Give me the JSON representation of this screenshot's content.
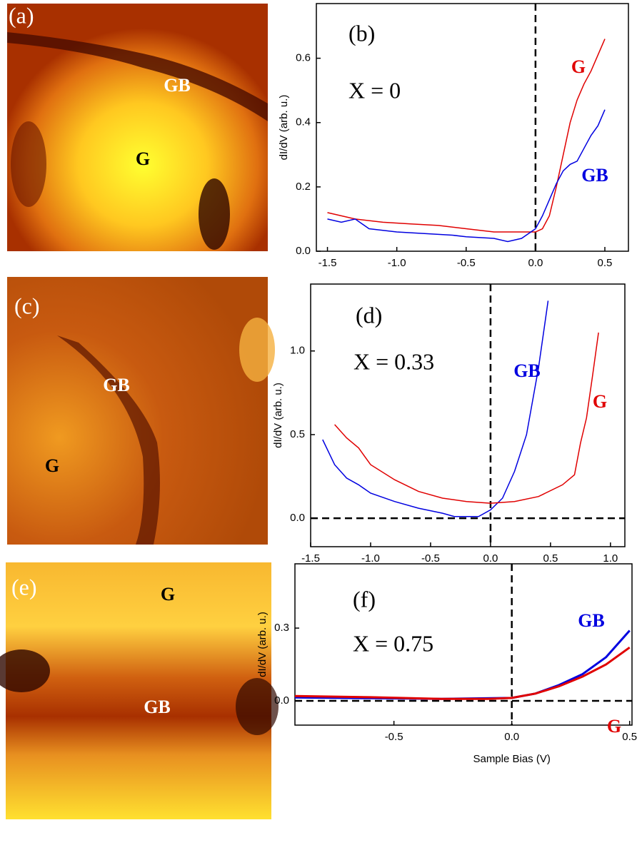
{
  "images": [
    {
      "panel": "(a)",
      "labels": [
        "GB",
        "G"
      ]
    },
    {
      "panel": "(c)",
      "labels": [
        "GB",
        "G"
      ]
    },
    {
      "panel": "(e)",
      "labels": [
        "G",
        "GB"
      ]
    }
  ],
  "chart_data": [
    {
      "type": "line",
      "panel": "(b)",
      "annotation": "X = 0",
      "ylabel": "dI/dV (arb. u.)",
      "xlim": [
        -1.58,
        0.67
      ],
      "ylim": [
        0,
        0.77
      ],
      "xticks": [
        -1.5,
        {
          "value": -1.0,
          "label": "-1.0"
        },
        -0.5,
        {
          "value": 0.0,
          "label": "0.0"
        },
        0.5
      ],
      "yticks": [
        {
          "value": 0.0,
          "label": "0.0"
        },
        0.2,
        0.4,
        0.6
      ],
      "dashed_zero_x": true,
      "dashed_zero_y": false,
      "series": [
        {
          "name": "G",
          "color": "#e00000",
          "x": [
            -1.5,
            -1.3,
            -1.1,
            -0.9,
            -0.7,
            -0.5,
            -0.3,
            -0.1,
            0.0,
            0.05,
            0.1,
            0.15,
            0.2,
            0.25,
            0.3,
            0.35,
            0.4,
            0.45,
            0.5
          ],
          "values": [
            0.12,
            0.1,
            0.09,
            0.085,
            0.08,
            0.07,
            0.06,
            0.06,
            0.06,
            0.07,
            0.11,
            0.2,
            0.3,
            0.4,
            0.47,
            0.52,
            0.56,
            0.61,
            0.66
          ]
        },
        {
          "name": "GB",
          "color": "#0000e0",
          "x": [
            -1.5,
            -1.4,
            -1.3,
            -1.2,
            -1.1,
            -1.0,
            -0.8,
            -0.6,
            -0.5,
            -0.3,
            -0.2,
            -0.1,
            0.0,
            0.05,
            0.1,
            0.15,
            0.2,
            0.25,
            0.3,
            0.35,
            0.4,
            0.45,
            0.5
          ],
          "values": [
            0.1,
            0.09,
            0.1,
            0.07,
            0.065,
            0.06,
            0.055,
            0.05,
            0.045,
            0.04,
            0.03,
            0.04,
            0.07,
            0.11,
            0.16,
            0.21,
            0.25,
            0.27,
            0.28,
            0.32,
            0.36,
            0.39,
            0.44
          ]
        }
      ]
    },
    {
      "type": "line",
      "panel": "(d)",
      "annotation": "X = 0.33",
      "ylabel": "dI/dV (arb. u.)",
      "xlim": [
        -1.5,
        1.12
      ],
      "ylim": [
        -0.17,
        1.4
      ],
      "xticks": [
        -1.5,
        {
          "value": -1.0,
          "label": "-1.0"
        },
        -0.5,
        {
          "value": 0.0,
          "label": "0.0"
        },
        0.5,
        {
          "value": 1.0,
          "label": "1.0"
        }
      ],
      "yticks": [
        {
          "value": 0.0,
          "label": "0.0"
        },
        0.5,
        {
          "value": 1.0,
          "label": "1.0"
        }
      ],
      "dashed_zero_x": true,
      "dashed_zero_y": true,
      "series": [
        {
          "name": "GB",
          "color": "#0000e0",
          "x": [
            -1.4,
            -1.3,
            -1.2,
            -1.1,
            -1.0,
            -0.8,
            -0.6,
            -0.4,
            -0.3,
            -0.1,
            0.0,
            0.1,
            0.2,
            0.3,
            0.35,
            0.4,
            0.45,
            0.48
          ],
          "values": [
            0.47,
            0.32,
            0.24,
            0.2,
            0.15,
            0.1,
            0.06,
            0.03,
            0.01,
            0.01,
            0.05,
            0.12,
            0.28,
            0.5,
            0.7,
            0.9,
            1.15,
            1.3
          ]
        },
        {
          "name": "G",
          "color": "#e00000",
          "x": [
            -1.3,
            -1.2,
            -1.1,
            -1.0,
            -0.8,
            -0.6,
            -0.4,
            -0.2,
            0.0,
            0.2,
            0.4,
            0.6,
            0.7,
            0.75,
            0.8,
            0.85,
            0.9
          ],
          "values": [
            0.56,
            0.48,
            0.42,
            0.32,
            0.23,
            0.16,
            0.12,
            0.1,
            0.09,
            0.1,
            0.13,
            0.2,
            0.26,
            0.45,
            0.6,
            0.85,
            1.11
          ]
        }
      ]
    },
    {
      "type": "line",
      "panel": "(f)",
      "annotation": "X = 0.75",
      "ylabel": "dI/dV (arb. u.)",
      "xlabel": "Sample Bias (V)",
      "xlim": [
        -0.92,
        0.51
      ],
      "ylim": [
        -0.1,
        0.565
      ],
      "xticks": [
        -0.5,
        {
          "value": 0.0,
          "label": "0.0"
        },
        0.5
      ],
      "yticks": [
        {
          "value": 0.0,
          "label": "0.0"
        },
        0.3
      ],
      "dashed_zero_x": true,
      "dashed_zero_y": true,
      "series": [
        {
          "name": "GB",
          "color": "#0000e0",
          "x": [
            -0.92,
            -0.6,
            -0.3,
            0.0,
            0.1,
            0.2,
            0.3,
            0.4,
            0.5
          ],
          "values": [
            0.014,
            0.011,
            0.008,
            0.012,
            0.03,
            0.065,
            0.11,
            0.18,
            0.29
          ]
        },
        {
          "name": "G",
          "color": "#e00000",
          "x": [
            -0.92,
            -0.6,
            -0.3,
            -0.1,
            0.0,
            0.1,
            0.2,
            0.3,
            0.4,
            0.5
          ],
          "values": [
            0.02,
            0.015,
            0.008,
            0.008,
            0.012,
            0.03,
            0.06,
            0.1,
            0.15,
            0.22
          ]
        }
      ]
    }
  ]
}
